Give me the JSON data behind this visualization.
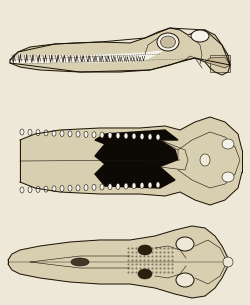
{
  "background_color": "#ede8d8",
  "line_color": "#1a1208",
  "bone_fill": "#d8ceb0",
  "white_fill": "#f5f2ea",
  "dark_fill": "#0d0a06",
  "figsize": [
    2.5,
    3.05
  ],
  "dpi": 100,
  "lw_main": 0.7,
  "lw_thin": 0.4,
  "lw_thick": 1.0
}
